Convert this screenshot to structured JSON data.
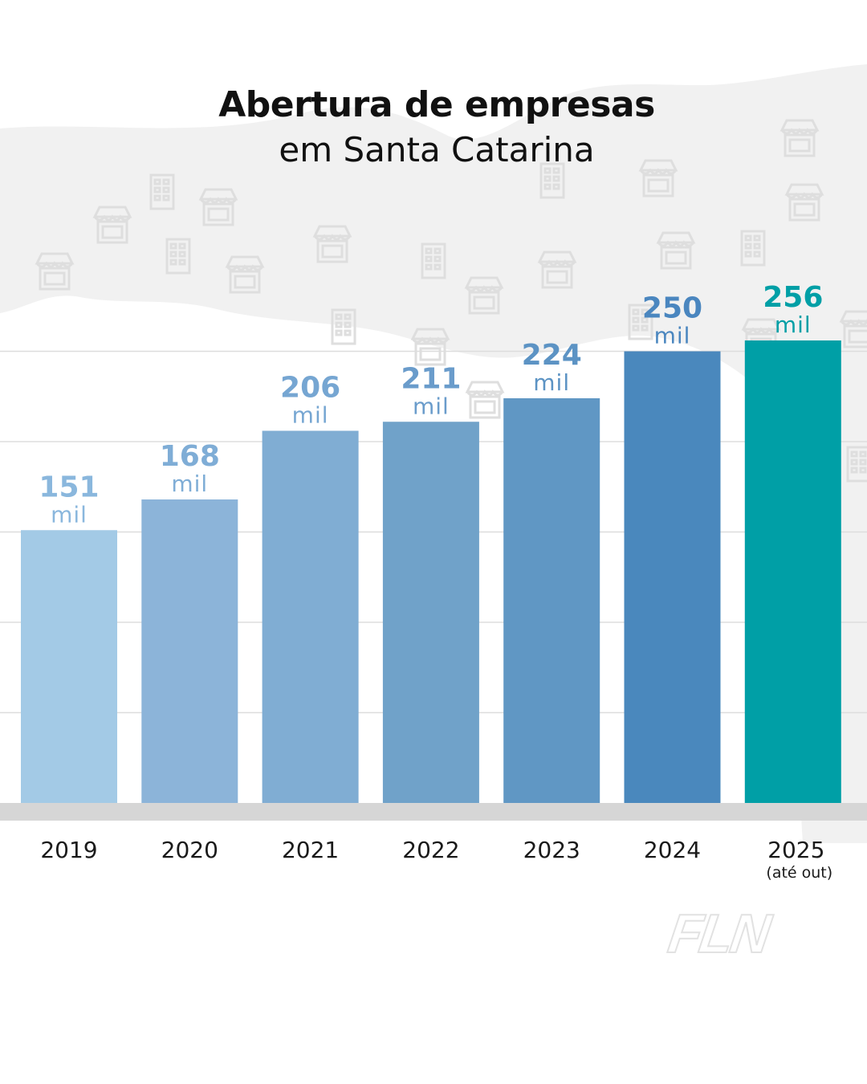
{
  "header": {
    "title": "Abertura de empresas",
    "subtitle": "em Santa Catarina"
  },
  "logo": {
    "text": "FLN"
  },
  "colors": {
    "bars": [
      "#a3cae6",
      "#8cb4d9",
      "#80add3",
      "#70a2c9",
      "#6097c4",
      "#4a88bd",
      "#009fa6"
    ],
    "value_labels": [
      "#8ab7dd",
      "#7fadd6",
      "#76a6d2",
      "#6a9ccb",
      "#5c93c4",
      "#4a86bf",
      "#009fa6"
    ],
    "grid": "#dddddd",
    "baseline": "#d6d6d6",
    "map": "#f1f1f1",
    "icons": "#dedede"
  },
  "chart_data": {
    "type": "bar",
    "title": "Abertura de empresas em Santa Catarina",
    "categories": [
      "2019",
      "2020",
      "2021",
      "2022",
      "2023",
      "2024",
      "2025"
    ],
    "category_notes": [
      "",
      "",
      "",
      "",
      "",
      "",
      "(até out)"
    ],
    "values": [
      151,
      168,
      206,
      211,
      224,
      250,
      256
    ],
    "value_unit": "mil",
    "grid": true,
    "ylim": [
      0,
      300
    ]
  }
}
